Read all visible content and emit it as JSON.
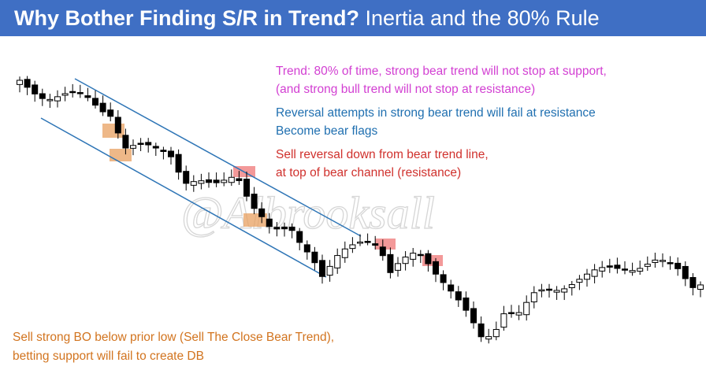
{
  "header": {
    "title_bold": "Why Bother Finding S/R in Trend?",
    "title_rest": "Inertia and the 80% Rule"
  },
  "watermark": "@Albrooksall",
  "annotations": {
    "trend": [
      "Trend: 80% of time, strong bear trend will not stop at support,",
      "(and strong bull trend will not stop at resistance)"
    ],
    "reversal": [
      "Reversal attempts in strong bear trend will fail at resistance",
      "Become bear flags"
    ],
    "sell_reversal": [
      "Sell reversal down from bear trend line,",
      "at top of bear channel (resistance)"
    ],
    "sell_breakout": [
      "Sell strong BO below prior low (Sell The Close Bear Trend),",
      "betting support will fail to create DB"
    ]
  }
}
